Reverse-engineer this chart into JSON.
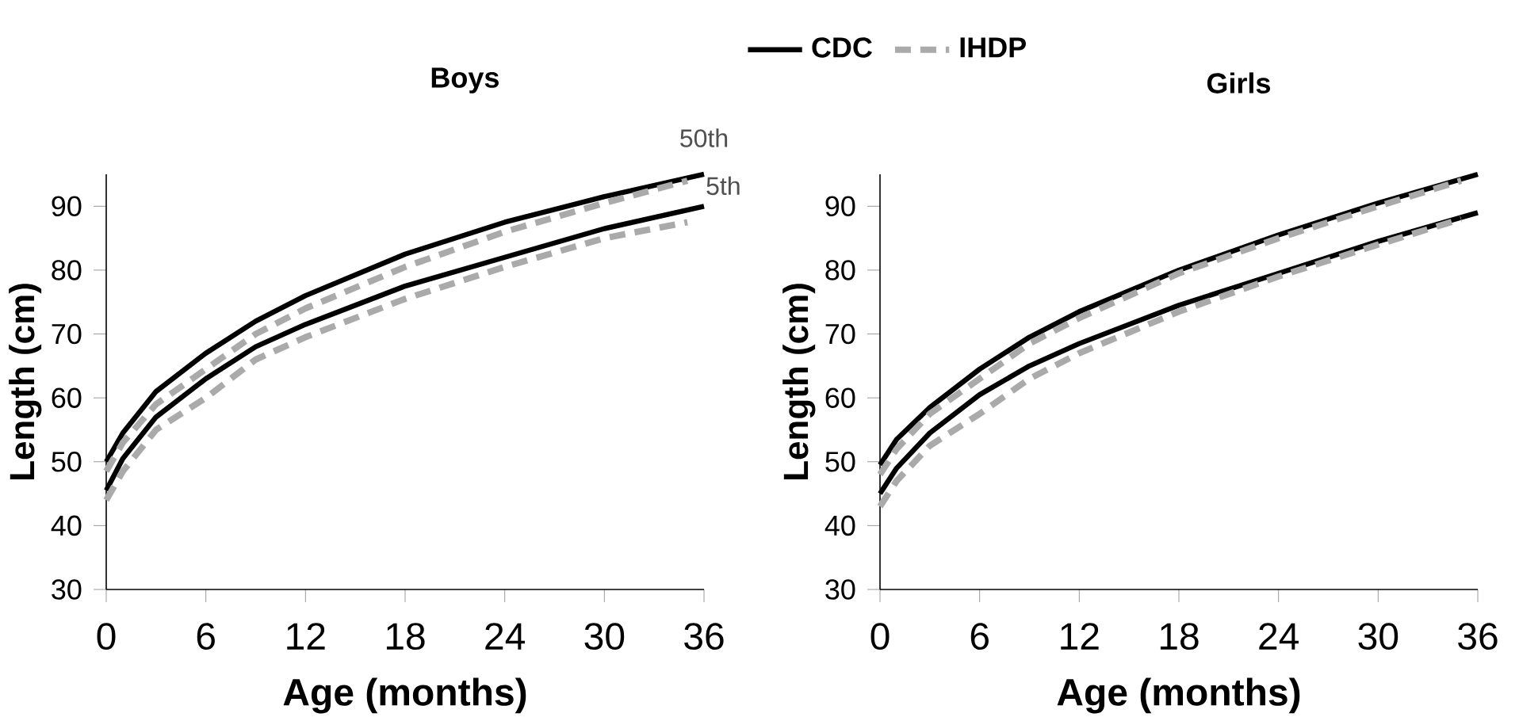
{
  "chart_data": [
    {
      "type": "line",
      "title": "Boys",
      "xlabel": "Age (months)",
      "ylabel": "Length (cm)",
      "xlim": [
        0,
        36
      ],
      "ylim": [
        30,
        95
      ],
      "xticks": [
        0,
        6,
        12,
        18,
        24,
        30,
        36
      ],
      "yticks": [
        30,
        40,
        50,
        60,
        70,
        80,
        90
      ],
      "legend": "top right",
      "annotations": [
        {
          "text": "50th",
          "x": 36,
          "y": 95
        },
        {
          "text": "5th",
          "x": 36,
          "y": 90
        }
      ],
      "series": [
        {
          "name": "CDC",
          "color": "#000000",
          "line_style": "solid",
          "x": [
            0,
            1,
            3,
            6,
            9,
            12,
            18,
            24,
            30,
            36
          ],
          "values": [
            50,
            54.5,
            61,
            67,
            72,
            76,
            82.5,
            87.5,
            91.5,
            95
          ]
        },
        {
          "color": "#000000",
          "line_style": "solid",
          "x": [
            0,
            1,
            3,
            6,
            9,
            12,
            18,
            24,
            30,
            36
          ],
          "values": [
            45.5,
            50.5,
            57,
            63,
            68,
            71.5,
            77.5,
            82,
            86.5,
            90
          ]
        },
        {
          "name": "IHDP",
          "color": "#aaaaaa",
          "line_style": "dashed",
          "x": [
            0,
            1,
            3,
            6,
            9,
            12,
            18,
            24,
            30,
            35
          ],
          "values": [
            48.5,
            53,
            59,
            64.5,
            70,
            74,
            80.5,
            86,
            90.5,
            94
          ]
        },
        {
          "color": "#aaaaaa",
          "line_style": "dashed",
          "x": [
            0,
            1,
            3,
            6,
            9,
            12,
            18,
            24,
            30,
            35
          ],
          "values": [
            44,
            48.5,
            55,
            60,
            66,
            69.5,
            75.5,
            80.5,
            85,
            87.5
          ]
        }
      ]
    },
    {
      "type": "line",
      "title": "Girls",
      "xlabel": "Age (months)",
      "ylabel": "Length (cm)",
      "xlim": [
        0,
        36
      ],
      "ylim": [
        30,
        95
      ],
      "xticks": [
        0,
        6,
        12,
        18,
        24,
        30,
        36
      ],
      "yticks": [
        30,
        40,
        50,
        60,
        70,
        80,
        90
      ],
      "series": [
        {
          "color": "#000000",
          "line_style": "solid",
          "x": [
            0,
            1,
            3,
            6,
            9,
            12,
            18,
            24,
            30,
            36
          ],
          "values": [
            49.5,
            53.5,
            58.5,
            64.5,
            69.5,
            73.5,
            80,
            85.5,
            90.5,
            95
          ]
        },
        {
          "color": "#000000",
          "line_style": "solid",
          "x": [
            0,
            1,
            3,
            6,
            9,
            12,
            18,
            24,
            30,
            36
          ],
          "values": [
            45,
            49,
            54.5,
            60.5,
            65,
            68.5,
            74.5,
            79.5,
            84.5,
            89
          ]
        },
        {
          "color": "#aaaaaa",
          "line_style": "dashed",
          "x": [
            0,
            1,
            3,
            6,
            9,
            12,
            18,
            24,
            30,
            35
          ],
          "values": [
            48,
            52,
            57.5,
            63,
            68.5,
            72.5,
            79.5,
            85,
            90,
            94
          ]
        },
        {
          "color": "#aaaaaa",
          "line_style": "dashed",
          "x": [
            0,
            1,
            3,
            6,
            9,
            12,
            18,
            24,
            30,
            35
          ],
          "values": [
            43,
            47,
            52.5,
            57.5,
            63,
            67,
            73.5,
            79,
            84,
            88
          ]
        }
      ]
    }
  ]
}
